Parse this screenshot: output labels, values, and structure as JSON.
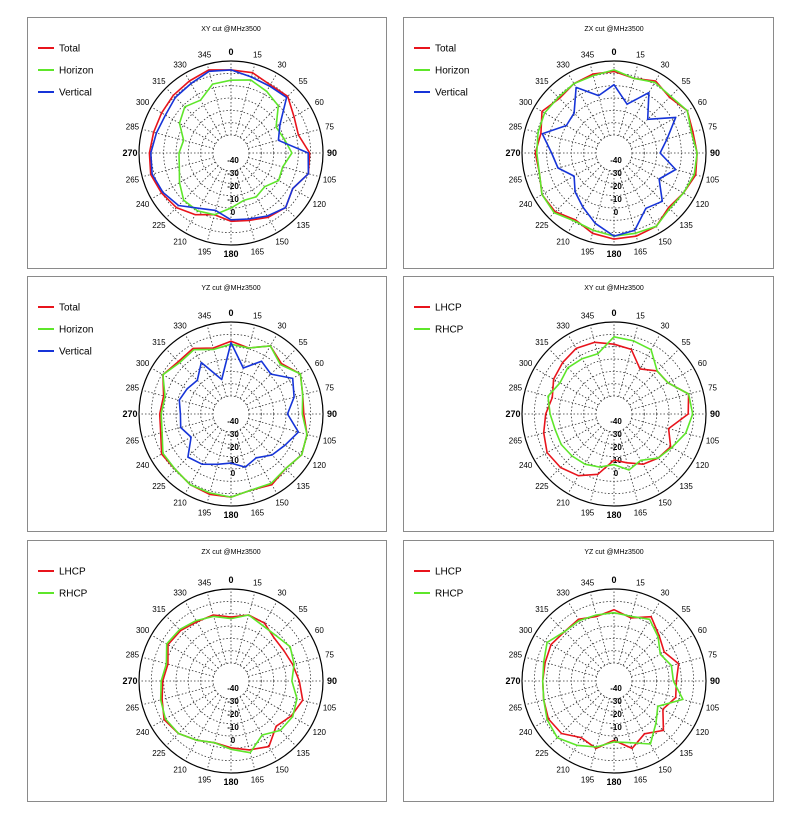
{
  "colors": {
    "red": "#e8141c",
    "green": "#5ee62a",
    "blue": "#1634d8",
    "grid": "#333333"
  },
  "chart_data": [
    {
      "type": "polar",
      "title": "XY cut @MHz3500",
      "angle_ticks": [
        "0",
        "15",
        "30",
        "55",
        "60",
        "75",
        "90",
        "105",
        "120",
        "135",
        "150",
        "165",
        "180",
        "195",
        "210",
        "225",
        "240",
        "265",
        "270",
        "285",
        "300",
        "315",
        "330",
        "345"
      ],
      "radial_ticks": [
        "-40",
        "-30",
        "-20",
        "-10",
        "0"
      ],
      "rlim": [
        -50,
        0
      ],
      "grid": true,
      "legend_position": "top-left",
      "series": [
        {
          "name": "Total",
          "color_key": "red",
          "values": [
            -6,
            -6,
            -9,
            -8,
            -13,
            -15,
            -9,
            -8,
            -14,
            -10,
            -12,
            -15,
            -16,
            -19,
            -14,
            -10,
            -8,
            -6,
            -7,
            -8,
            -8,
            -7,
            -6,
            -4
          ]
        },
        {
          "name": "Horizon",
          "color_key": "green",
          "values": [
            -13,
            -11,
            -14,
            -17,
            -27,
            -25,
            -21,
            -26,
            -25,
            -30,
            -28,
            -29,
            -25,
            -19,
            -17,
            -17,
            -22,
            -26,
            -27,
            -29,
            -22,
            -18,
            -21,
            -14
          ]
        },
        {
          "name": "Vertical",
          "color_key": "blue",
          "values": [
            -6,
            -9,
            -10,
            -9,
            -24,
            -29,
            -10,
            -8,
            -14,
            -10,
            -13,
            -16,
            -17,
            -22,
            -19,
            -12,
            -9,
            -7,
            -8,
            -10,
            -11,
            -9,
            -8,
            -5
          ]
        }
      ]
    },
    {
      "type": "polar",
      "title": "ZX cut @MHz3500",
      "angle_ticks": [
        "0",
        "15",
        "30",
        "55",
        "60",
        "75",
        "90",
        "105",
        "120",
        "135",
        "150",
        "165",
        "180",
        "195",
        "210",
        "225",
        "240",
        "265",
        "270",
        "285",
        "300",
        "315",
        "330",
        "345"
      ],
      "radial_ticks": [
        "-40",
        "-30",
        "-20",
        "-10",
        "0"
      ],
      "rlim": [
        -50,
        0
      ],
      "grid": true,
      "legend_position": "top-left",
      "series": [
        {
          "name": "Total",
          "color_key": "red",
          "values": [
            -7,
            -10,
            -6,
            -9,
            -5,
            -7,
            -6,
            -5,
            -8,
            -10,
            -5,
            -4,
            -4,
            -6,
            -10,
            -6,
            -6,
            -10,
            -9,
            -11,
            -6,
            -10,
            -8,
            -7
          ]
        },
        {
          "name": "Horizon",
          "color_key": "green",
          "values": [
            -6,
            -10,
            -7,
            -8,
            -5,
            -8,
            -6,
            -6,
            -8,
            -9,
            -5,
            -6,
            -6,
            -8,
            -9,
            -5,
            -6,
            -10,
            -10,
            -9,
            -8,
            -9,
            -8,
            -8
          ]
        },
        {
          "name": "Vertical",
          "color_key": "blue",
          "values": [
            -16,
            -28,
            -15,
            -30,
            -14,
            -25,
            -31,
            -19,
            -27,
            -16,
            -19,
            -8,
            -6,
            -13,
            -20,
            -25,
            -31,
            -23,
            -20,
            -12,
            -25,
            -24,
            -11,
            -22
          ]
        }
      ]
    },
    {
      "type": "polar",
      "title": "YZ cut @MHz3500",
      "angle_ticks": [
        "0",
        "15",
        "30",
        "55",
        "60",
        "75",
        "90",
        "105",
        "120",
        "135",
        "150",
        "165",
        "180",
        "195",
        "210",
        "225",
        "240",
        "265",
        "270",
        "285",
        "300",
        "315",
        "330",
        "345"
      ],
      "radial_ticks": [
        "-40",
        "-30",
        "-20",
        "-10",
        "0"
      ],
      "rlim": [
        -50,
        0
      ],
      "grid": true,
      "legend_position": "top-left",
      "series": [
        {
          "name": "Total",
          "color_key": "red",
          "values": [
            -13,
            -16,
            -9,
            -14,
            -8,
            -12,
            -13,
            -9,
            -7,
            -10,
            -7,
            -9,
            -6,
            -6,
            -7,
            -9,
            -8,
            -13,
            -14,
            -15,
            -9,
            -12,
            -11,
            -16
          ]
        },
        {
          "name": "Horizon",
          "color_key": "green",
          "values": [
            -15,
            -16,
            -9,
            -15,
            -8,
            -12,
            -14,
            -9,
            -7,
            -10,
            -8,
            -9,
            -6,
            -7,
            -7,
            -9,
            -9,
            -14,
            -15,
            -16,
            -9,
            -13,
            -12,
            -17
          ]
        },
        {
          "name": "Vertical",
          "color_key": "blue",
          "values": [
            -14,
            -30,
            -21,
            -24,
            -14,
            -18,
            -24,
            -15,
            -20,
            -23,
            -28,
            -25,
            -29,
            -27,
            -23,
            -21,
            -31,
            -27,
            -28,
            -26,
            -28,
            -30,
            -22,
            -38
          ]
        }
      ]
    },
    {
      "type": "polar",
      "title": "XY cut @MHz3500",
      "angle_ticks": [
        "0",
        "15",
        "30",
        "55",
        "60",
        "75",
        "90",
        "105",
        "120",
        "135",
        "150",
        "165",
        "180",
        "195",
        "210",
        "225",
        "240",
        "265",
        "270",
        "285",
        "300",
        "315",
        "330",
        "345"
      ],
      "radial_ticks": [
        "-40",
        "-30",
        "-20",
        "-10",
        "0"
      ],
      "rlim": [
        -50,
        0
      ],
      "grid": true,
      "legend_position": "top-left",
      "series": [
        {
          "name": "LHCP",
          "color_key": "red",
          "values": [
            -15,
            -17,
            -27,
            -21,
            -20,
            -10,
            -12,
            -24,
            -18,
            -20,
            -23,
            -28,
            -31,
            -20,
            -14,
            -11,
            -10,
            -13,
            -16,
            -19,
            -15,
            -13,
            -11,
            -12
          ]
        },
        {
          "name": "RHCP",
          "color_key": "green",
          "values": [
            -10,
            -11,
            -12,
            -21,
            -20,
            -10,
            -9,
            -12,
            -17,
            -20,
            -26,
            -23,
            -28,
            -25,
            -23,
            -22,
            -21,
            -21,
            -19,
            -16,
            -20,
            -18,
            -19,
            -20
          ]
        }
      ]
    },
    {
      "type": "polar",
      "title": "ZX cut @MHz3500",
      "angle_ticks": [
        "0",
        "15",
        "30",
        "55",
        "60",
        "75",
        "90",
        "105",
        "120",
        "135",
        "150",
        "165",
        "180",
        "195",
        "210",
        "225",
        "240",
        "265",
        "270",
        "285",
        "300",
        "315",
        "330",
        "345"
      ],
      "radial_ticks": [
        "-40",
        "-30",
        "-20",
        "-10",
        "0"
      ],
      "rlim": [
        -50,
        0
      ],
      "grid": true,
      "legend_position": "top-left",
      "series": [
        {
          "name": "LHCP",
          "color_key": "red",
          "values": [
            -19,
            -16,
            -17,
            -21,
            -21,
            -19,
            -16,
            -12,
            -15,
            -19,
            -11,
            -14,
            -17,
            -19,
            -16,
            -12,
            -10,
            -14,
            -16,
            -18,
            -13,
            -14,
            -16,
            -16
          ]
        },
        {
          "name": "RHCP",
          "color_key": "green",
          "values": [
            -20,
            -16,
            -19,
            -19,
            -16,
            -18,
            -21,
            -16,
            -14,
            -15,
            -20,
            -12,
            -16,
            -19,
            -16,
            -12,
            -11,
            -13,
            -15,
            -17,
            -12,
            -13,
            -15,
            -17
          ]
        }
      ]
    },
    {
      "type": "polar",
      "title": "YZ cut @MHz3500",
      "angle_ticks": [
        "0",
        "15",
        "30",
        "55",
        "60",
        "75",
        "90",
        "105",
        "120",
        "135",
        "150",
        "165",
        "180",
        "195",
        "210",
        "225",
        "240",
        "265",
        "270",
        "285",
        "300",
        "315",
        "330",
        "345"
      ],
      "radial_ticks": [
        "-40",
        "-30",
        "-20",
        "-10",
        "0"
      ],
      "rlim": [
        -50,
        0
      ],
      "grid": true,
      "legend_position": "top-left",
      "series": [
        {
          "name": "LHCP",
          "color_key": "red",
          "values": [
            -14,
            -18,
            -12,
            -19,
            -23,
            -17,
            -20,
            -19,
            -24,
            -15,
            -21,
            -15,
            -22,
            -15,
            -18,
            -12,
            -11,
            -13,
            -14,
            -14,
            -13,
            -15,
            -14,
            -17
          ]
        },
        {
          "name": "RHCP",
          "color_key": "green",
          "values": [
            -16,
            -17,
            -14,
            -20,
            -26,
            -22,
            -22,
            -14,
            -28,
            -22,
            -13,
            -19,
            -21,
            -16,
            -12,
            -8,
            -10,
            -13,
            -14,
            -13,
            -10,
            -15,
            -15,
            -16
          ]
        }
      ]
    }
  ]
}
